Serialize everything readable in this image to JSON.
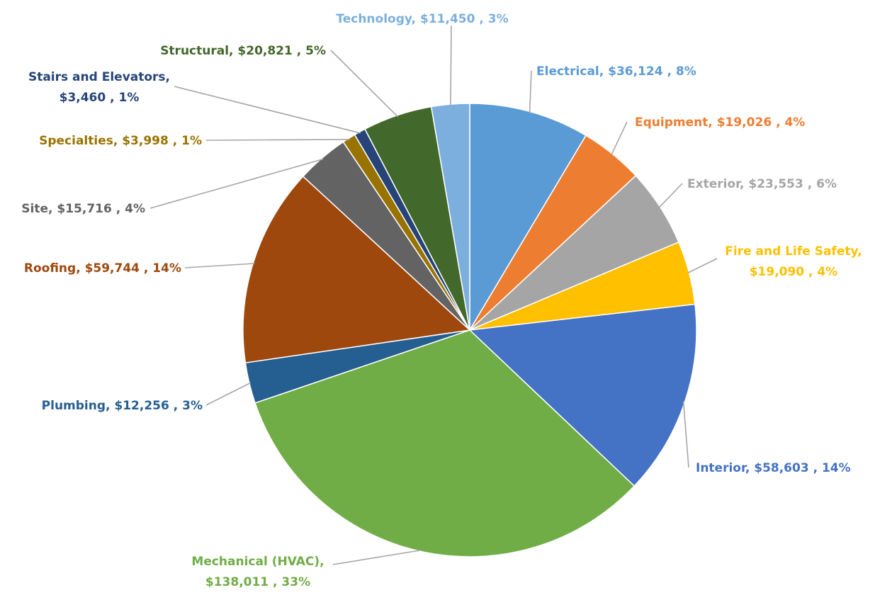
{
  "chart_data": {
    "type": "pie",
    "title": "",
    "legend": "none",
    "slices": [
      {
        "name": "Electrical",
        "value": 36124,
        "value_label": "$36,124",
        "percent_label": "8%",
        "color": "#5B9BD5"
      },
      {
        "name": "Equipment",
        "value": 19026,
        "value_label": "$19,026",
        "percent_label": "4%",
        "color": "#ED7D31"
      },
      {
        "name": "Exterior",
        "value": 23553,
        "value_label": "$23,553",
        "percent_label": "6%",
        "color": "#A5A5A5"
      },
      {
        "name": "Fire and Life Safety",
        "value": 19090,
        "value_label": "$19,090",
        "percent_label": "4%",
        "color": "#FFC000"
      },
      {
        "name": "Interior",
        "value": 58603,
        "value_label": "$58,603",
        "percent_label": "14%",
        "color": "#4472C4"
      },
      {
        "name": "Mechanical (HVAC)",
        "value": 138011,
        "value_label": "$138,011",
        "percent_label": "33%",
        "color": "#70AD47"
      },
      {
        "name": "Plumbing",
        "value": 12256,
        "value_label": "$12,256",
        "percent_label": "3%",
        "color": "#255E91"
      },
      {
        "name": "Roofing",
        "value": 59744,
        "value_label": "$59,744",
        "percent_label": "14%",
        "color": "#9E480E"
      },
      {
        "name": "Site",
        "value": 15716,
        "value_label": "$15,716",
        "percent_label": "4%",
        "color": "#636363"
      },
      {
        "name": "Specialties",
        "value": 3998,
        "value_label": "$3,998",
        "percent_label": "1%",
        "color": "#997300"
      },
      {
        "name": "Stairs and Elevators",
        "value": 3460,
        "value_label": "$3,460",
        "percent_label": "1%",
        "color": "#264478"
      },
      {
        "name": "Structural",
        "value": 20821,
        "value_label": "$20,821",
        "percent_label": "5%",
        "color": "#43682B"
      },
      {
        "name": "Technology",
        "value": 11450,
        "value_label": "$11,450",
        "percent_label": "3%",
        "color": "#7CAFDD"
      }
    ]
  }
}
